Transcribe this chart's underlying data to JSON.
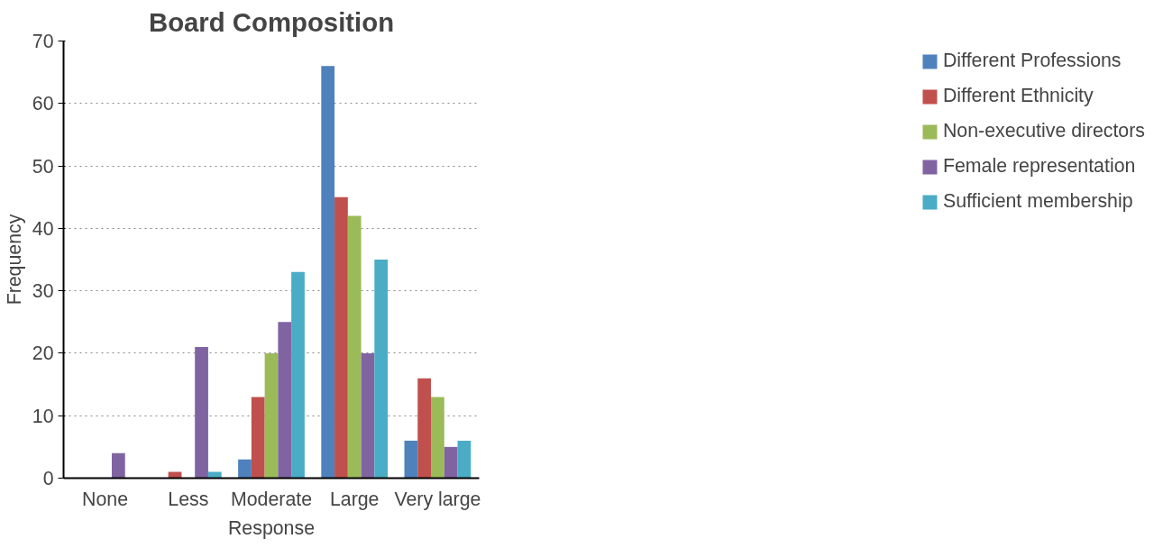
{
  "chart_data": {
    "type": "bar",
    "title": "Board Composition",
    "xlabel": "Response",
    "ylabel": "Frequency",
    "categories": [
      "None",
      "Less",
      "Moderate",
      "Large",
      "Very large"
    ],
    "series": [
      {
        "name": "Different Professions",
        "color": "#4f81bd",
        "values": [
          0,
          0,
          3,
          66,
          6
        ]
      },
      {
        "name": "Different Ethnicity",
        "color": "#c0504d",
        "values": [
          0,
          1,
          13,
          45,
          16
        ]
      },
      {
        "name": "Non-executive directors",
        "color": "#9bbb59",
        "values": [
          0,
          0,
          20,
          42,
          13
        ]
      },
      {
        "name": "Female representation",
        "color": "#8064a2",
        "values": [
          4,
          21,
          25,
          20,
          5
        ]
      },
      {
        "name": "Sufficient membership",
        "color": "#4bacc6",
        "values": [
          0,
          1,
          33,
          35,
          6
        ]
      }
    ],
    "ylim": [
      0,
      70
    ],
    "yticks": [
      0,
      10,
      20,
      30,
      40,
      50,
      60,
      70
    ],
    "grid": "y",
    "legend": "right"
  }
}
